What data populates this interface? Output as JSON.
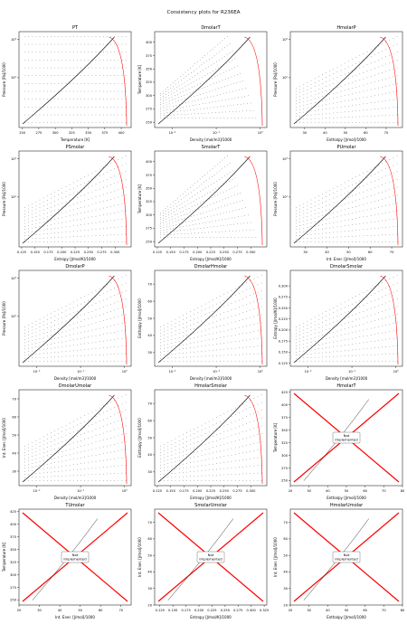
{
  "suptitle": "Consistency plots for R236EA",
  "not_implemented_label": [
    "Not",
    "Implemented"
  ],
  "colors": {
    "data": "#000000",
    "boundary": "#ff0000",
    "axes": "#000000"
  },
  "chart_data": [
    {
      "type": "scatter",
      "title": "PT",
      "xlabel": "Temperature [K]",
      "ylabel": "Pressure [Pa]/1000",
      "xlim": [
        245,
        415
      ],
      "ylim_log10": [
        0.7,
        3.2
      ],
      "yscale": "log",
      "xticks": [
        250,
        275,
        300,
        325,
        350,
        375,
        400
      ],
      "yticks": [
        {
          "v": 2,
          "label": "10²"
        },
        {
          "v": 3,
          "label": "10³"
        }
      ],
      "curve": "saturation"
    },
    {
      "type": "scatter",
      "title": "DmolarT",
      "xlabel": "Density [mol/m3]/1000",
      "ylabel": "Temperature [K]",
      "xlim_log10": [
        -2.4,
        0.15
      ],
      "ylim": [
        240,
        420
      ],
      "xscale": "log",
      "xticks": [
        {
          "v": -2,
          "label": "10⁻²"
        },
        {
          "v": -1,
          "label": "10⁻¹"
        },
        {
          "v": 0,
          "label": "10⁰"
        }
      ],
      "yticks": [
        250,
        275,
        300,
        325,
        350,
        375,
        400
      ]
    },
    {
      "type": "scatter",
      "title": "HmolarP",
      "xlabel": "Enthalpy [J/mol]/1000",
      "ylabel": "Pressure [Pa]/1000",
      "xlim": [
        23,
        78
      ],
      "ylim_log10": [
        0.7,
        3.2
      ],
      "yscale": "log",
      "xticks": [
        30,
        40,
        50,
        60,
        70
      ],
      "yticks": [
        {
          "v": 2,
          "label": "10²"
        },
        {
          "v": 3,
          "label": "10³"
        }
      ]
    },
    {
      "type": "scatter",
      "title": "PSmolar",
      "xlabel": "Entropy [J/mol/K]/1000",
      "ylabel": "Pressure [Pa]/1000",
      "xlim": [
        0.12,
        0.33
      ],
      "ylim_log10": [
        0.7,
        3.2
      ],
      "yscale": "log",
      "xticks": [
        0.125,
        0.15,
        0.175,
        0.2,
        0.225,
        0.25,
        0.275,
        0.3
      ],
      "yticks": [
        {
          "v": 2,
          "label": "10²"
        },
        {
          "v": 3,
          "label": "10³"
        }
      ]
    },
    {
      "type": "scatter",
      "title": "SmolarT",
      "xlabel": "Entropy [J/mol/K]/1000",
      "ylabel": "Temperature [K]",
      "xlim": [
        0.12,
        0.33
      ],
      "ylim": [
        240,
        420
      ],
      "xticks": [
        0.125,
        0.15,
        0.175,
        0.2,
        0.225,
        0.25,
        0.275,
        0.3
      ],
      "yticks": [
        250,
        275,
        300,
        325,
        350,
        375,
        400
      ]
    },
    {
      "type": "scatter",
      "title": "PUmolar",
      "xlabel": "Int. Ener. [J/mol]/1000",
      "ylabel": "Pressure [Pa]/1000",
      "xlim": [
        23,
        75
      ],
      "ylim_log10": [
        0.7,
        3.2
      ],
      "yscale": "log",
      "xticks": [
        30,
        40,
        50,
        60,
        70
      ],
      "yticks": [
        {
          "v": 2,
          "label": "10²"
        },
        {
          "v": 3,
          "label": "10³"
        }
      ]
    },
    {
      "type": "scatter",
      "title": "DmolarP",
      "xlabel": "Density [mol/m3]/1000",
      "ylabel": "Pressure [Pa]/1000",
      "xlim_log10": [
        -2.4,
        0.15
      ],
      "ylim_log10": [
        0.7,
        3.2
      ],
      "xscale": "log",
      "yscale": "log",
      "xticks": [
        {
          "v": -2,
          "label": "10⁻²"
        },
        {
          "v": -1,
          "label": "10⁻¹"
        },
        {
          "v": 0,
          "label": "10⁰"
        }
      ],
      "yticks": [
        {
          "v": 2,
          "label": "10²"
        },
        {
          "v": 3,
          "label": "10³"
        }
      ]
    },
    {
      "type": "scatter",
      "title": "DmolarHmolar",
      "xlabel": "Density [mol/m3]/1000",
      "ylabel": "Enthalpy [J/mol]/1000",
      "xlim_log10": [
        -2.4,
        0.15
      ],
      "ylim": [
        22,
        78
      ],
      "xscale": "log",
      "xticks": [
        {
          "v": -2,
          "label": "10⁻²"
        },
        {
          "v": -1,
          "label": "10⁻¹"
        },
        {
          "v": 0,
          "label": "10⁰"
        }
      ],
      "yticks": [
        30,
        40,
        50,
        60,
        70
      ]
    },
    {
      "type": "scatter",
      "title": "DmolarSmolar",
      "xlabel": "Density [mol/m3]/1000",
      "ylabel": "Entropy [J/mol/K]/1000",
      "xlim_log10": [
        -2.4,
        0.15
      ],
      "ylim": [
        0.118,
        0.335
      ],
      "xscale": "log",
      "xticks": [
        {
          "v": -2,
          "label": "10⁻²"
        },
        {
          "v": -1,
          "label": "10⁻¹"
        },
        {
          "v": 0,
          "label": "10⁰"
        }
      ],
      "yticks": [
        0.125,
        0.15,
        0.175,
        0.2,
        0.225,
        0.25,
        0.275,
        0.3
      ]
    },
    {
      "type": "scatter",
      "title": "DmolarUmolar",
      "xlabel": "Density [mol/m3]/1000",
      "ylabel": "Int. Ener. [J/mol]/1000",
      "xlim_log10": [
        -2.4,
        0.15
      ],
      "ylim": [
        22,
        75
      ],
      "xscale": "log",
      "xticks": [
        {
          "v": -2,
          "label": "10⁻²"
        },
        {
          "v": -1,
          "label": "10⁻¹"
        },
        {
          "v": 0,
          "label": "10⁰"
        }
      ],
      "yticks": [
        30,
        40,
        50,
        60,
        70
      ]
    },
    {
      "type": "scatter",
      "title": "HmolarSmolar",
      "xlabel": "Entropy [J/mol/K]/1000",
      "ylabel": "Enthalpy [J/mol]/1000",
      "xlim": [
        0.12,
        0.33
      ],
      "ylim": [
        22,
        78
      ],
      "xticks": [
        0.125,
        0.15,
        0.175,
        0.2,
        0.225,
        0.25,
        0.275,
        0.3
      ],
      "yticks": [
        30,
        40,
        50,
        60,
        70
      ]
    },
    {
      "type": "scatter",
      "title": "HmolarT",
      "xlabel": "Enthalpy [J/mol]/1000",
      "ylabel": "Temperature [K]",
      "xlim": [
        20,
        80
      ],
      "ylim": [
        240,
        430
      ],
      "xticks": [
        20,
        30,
        40,
        50,
        60,
        70,
        80
      ],
      "yticks": [
        250,
        275,
        300,
        325,
        350,
        375,
        400,
        425
      ],
      "not_implemented": true
    },
    {
      "type": "scatter",
      "title": "TUmolar",
      "xlabel": "Int. Ener. [J/mol]/1000",
      "ylabel": "Temperature [K]",
      "xlim": [
        20,
        75
      ],
      "ylim": [
        240,
        430
      ],
      "xticks": [
        20,
        30,
        40,
        50,
        60,
        70
      ],
      "yticks": [
        250,
        275,
        300,
        325,
        350,
        375,
        400,
        425
      ],
      "not_implemented": true
    },
    {
      "type": "scatter",
      "title": "SmolarUmolar",
      "xlabel": "Entropy [J/mol/K]/1000",
      "ylabel": "Int. Ener. [J/mol]/1000",
      "xlim": [
        0.115,
        0.33
      ],
      "ylim": [
        20,
        78
      ],
      "xticks": [
        0.125,
        0.15,
        0.175,
        0.2,
        0.225,
        0.25,
        0.275,
        0.3,
        0.325
      ],
      "yticks": [
        20,
        30,
        40,
        50,
        60,
        70
      ],
      "not_implemented": true
    },
    {
      "type": "scatter",
      "title": "HmolarUmolar",
      "xlabel": "Enthalpy [J/mol]/1000",
      "ylabel": "Int. Ener. [J/mol]/1000",
      "xlim": [
        20,
        80
      ],
      "ylim": [
        20,
        78
      ],
      "xticks": [
        20,
        30,
        40,
        50,
        60,
        70,
        80
      ],
      "yticks": [
        20,
        30,
        40,
        50,
        60,
        70
      ],
      "not_implemented": true
    }
  ]
}
